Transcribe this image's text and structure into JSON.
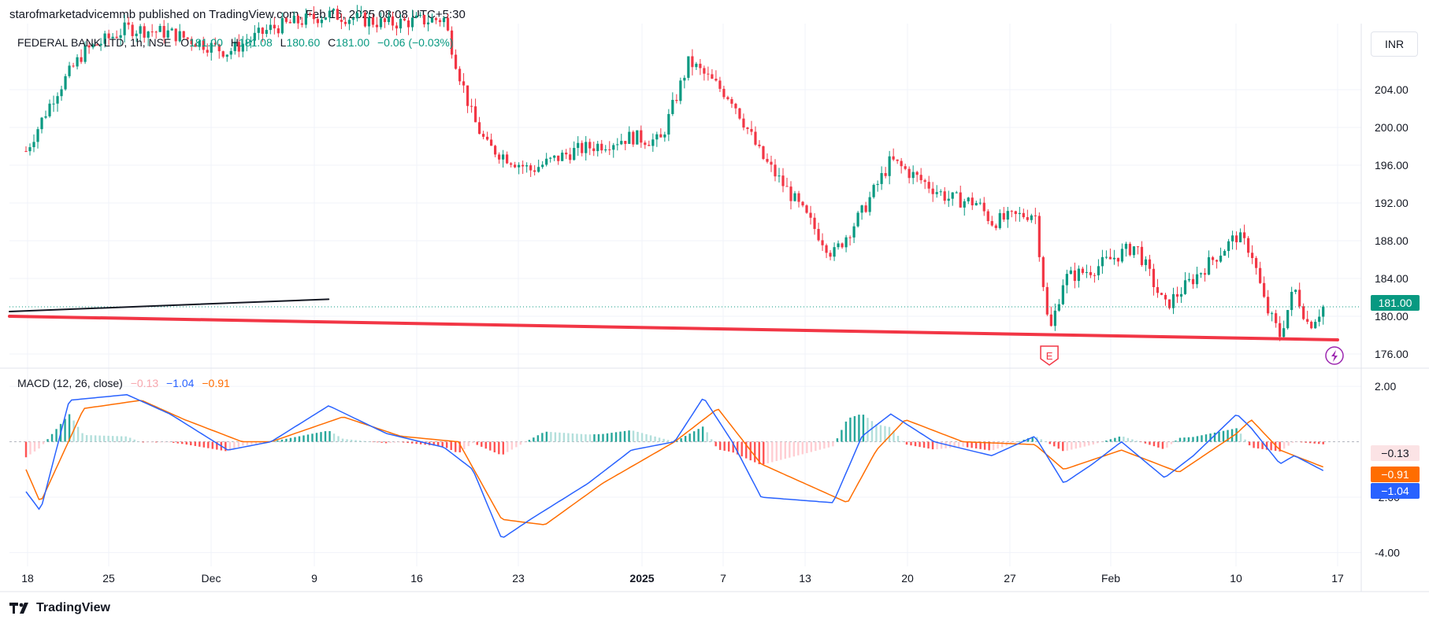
{
  "publisher_line": "starofmarketadvicemmb published on TradingView.com, Feb 16, 2025 08:08 UTC+5:30",
  "legend": {
    "symbol": "FEDERAL BANK LTD, 1h, NSE",
    "open_label": "O",
    "open": "181.00",
    "high_label": "H",
    "high": "181.08",
    "low_label": "L",
    "low": "180.60",
    "close_label": "C",
    "close": "181.00",
    "change": "−0.06 (−0.03%)"
  },
  "macd_legend": {
    "title": "MACD (12, 26, close)",
    "hist": "−0.13",
    "macd": "−1.04",
    "signal": "−0.91"
  },
  "currency": "INR",
  "brand": "TradingView",
  "last_price_tag": "181.00",
  "macd_tags": {
    "hist": "−0.13",
    "signal": "−0.91",
    "macd": "−1.04"
  },
  "earnings_marker": "E",
  "colors": {
    "up": "#089981",
    "down": "#f23645",
    "macd": "#2962ff",
    "signal": "#ff6d00",
    "trendline_red": "#f23645",
    "trendline_black": "#131722",
    "grid": "#f0f3fa",
    "events": "#9c27b0"
  },
  "chart_data": [
    {
      "type": "candlestick",
      "title": "FEDERAL BANK LTD, 1h, NSE",
      "ylim": [
        174.5,
        211
      ],
      "y_ticks": [
        "204.00",
        "200.00",
        "196.00",
        "192.00",
        "188.00",
        "184.00",
        "180.00",
        "176.00"
      ],
      "x_ticks": [
        "18",
        "25",
        "Dec",
        "9",
        "16",
        "23",
        "2025",
        "7",
        "13",
        "20",
        "27",
        "Feb",
        "10",
        "17"
      ],
      "close_path": [
        [
          "2024-11-18",
          197.5
        ],
        [
          "2024-11-20",
          203.5
        ],
        [
          "2024-11-22",
          208.0
        ],
        [
          "2024-11-25",
          210.5
        ],
        [
          "2024-11-28",
          210.0
        ],
        [
          "2024-12-02",
          208.0
        ],
        [
          "2024-12-05",
          210.5
        ],
        [
          "2024-12-09",
          212.0
        ],
        [
          "2024-12-13",
          211.0
        ],
        [
          "2024-12-17",
          211.5
        ],
        [
          "2024-12-18",
          206.0
        ],
        [
          "2024-12-19",
          201.0
        ],
        [
          "2024-12-20",
          198.0
        ],
        [
          "2024-12-23",
          195.5
        ],
        [
          "2024-12-26",
          197.5
        ],
        [
          "2024-12-30",
          199.0
        ],
        [
          "2025-01-01",
          198.5
        ],
        [
          "2025-01-03",
          207.0
        ],
        [
          "2025-01-06",
          203.0
        ],
        [
          "2025-01-08",
          197.0
        ],
        [
          "2025-01-10",
          193.0
        ],
        [
          "2025-01-13",
          186.5
        ],
        [
          "2025-01-15",
          191.0
        ],
        [
          "2025-01-17",
          196.5
        ],
        [
          "2025-01-21",
          192.5
        ],
        [
          "2025-01-23",
          192.0
        ],
        [
          "2025-01-24",
          190.0
        ],
        [
          "2025-01-27",
          191.0
        ],
        [
          "2025-01-28",
          178.0
        ],
        [
          "2025-01-29",
          184.0
        ],
        [
          "2025-01-31",
          185.0
        ],
        [
          "2025-02-03",
          187.5
        ],
        [
          "2025-02-05",
          181.0
        ],
        [
          "2025-02-07",
          184.0
        ],
        [
          "2025-02-10",
          188.5
        ],
        [
          "2025-02-11",
          187.0
        ],
        [
          "2025-02-12",
          181.0
        ],
        [
          "2025-02-13",
          178.0
        ],
        [
          "2025-02-14",
          183.0
        ],
        [
          "2025-02-15",
          179.0
        ],
        [
          "2025-02-16",
          181.0
        ]
      ],
      "last_price": 181.0,
      "trendlines": [
        {
          "name": "support",
          "from": [
            "2024-11-18",
            180.0
          ],
          "to": [
            "2025-02-17",
            177.5
          ],
          "color": "#f23645"
        },
        {
          "name": "trend",
          "from": [
            "2024-11-18",
            180.5
          ],
          "to": [
            "2024-12-09",
            181.8
          ],
          "color": "#131722"
        }
      ],
      "events": [
        {
          "date": "2025-01-28",
          "label": "E"
        },
        {
          "date": "2025-02-17",
          "label": "⚡"
        }
      ]
    },
    {
      "type": "macd",
      "title": "MACD (12, 26, close)",
      "ylim": [
        -4.5,
        2.6
      ],
      "y_ticks": [
        "2.00",
        "-2.00",
        "-4.00"
      ],
      "macd_path": [
        [
          "2024-11-18",
          -1.8
        ],
        [
          "2024-11-19",
          -2.5
        ],
        [
          "2024-11-21",
          1.5
        ],
        [
          "2024-11-25",
          1.7
        ],
        [
          "2024-11-28",
          1.0
        ],
        [
          "2024-12-02",
          -0.3
        ],
        [
          "2024-12-05",
          0.0
        ],
        [
          "2024-12-09",
          1.3
        ],
        [
          "2024-12-13",
          0.3
        ],
        [
          "2024-12-17",
          -0.2
        ],
        [
          "2024-12-19",
          -1.0
        ],
        [
          "2024-12-21",
          -3.5
        ],
        [
          "2024-12-23",
          -2.8
        ],
        [
          "2024-12-27",
          -1.5
        ],
        [
          "2024-12-30",
          -0.3
        ],
        [
          "2025-01-02",
          0.0
        ],
        [
          "2025-01-04",
          1.6
        ],
        [
          "2025-01-06",
          0.0
        ],
        [
          "2025-01-08",
          -2.0
        ],
        [
          "2025-01-13",
          -2.2
        ],
        [
          "2025-01-15",
          0.2
        ],
        [
          "2025-01-17",
          1.0
        ],
        [
          "2025-01-20",
          0.0
        ],
        [
          "2025-01-24",
          -0.5
        ],
        [
          "2025-01-27",
          0.2
        ],
        [
          "2025-01-29",
          -1.5
        ],
        [
          "2025-01-31",
          -0.8
        ],
        [
          "2025-02-02",
          0.0
        ],
        [
          "2025-02-05",
          -1.3
        ],
        [
          "2025-02-07",
          -0.5
        ],
        [
          "2025-02-10",
          1.0
        ],
        [
          "2025-02-11",
          0.5
        ],
        [
          "2025-02-13",
          -0.8
        ],
        [
          "2025-02-14",
          -0.5
        ],
        [
          "2025-02-16",
          -1.04
        ]
      ],
      "signal_path": [
        [
          "2024-11-18",
          -1.0
        ],
        [
          "2024-11-19",
          -2.2
        ],
        [
          "2024-11-22",
          1.2
        ],
        [
          "2024-11-26",
          1.5
        ],
        [
          "2024-11-29",
          0.8
        ],
        [
          "2024-12-03",
          0.0
        ],
        [
          "2024-12-05",
          0.0
        ],
        [
          "2024-12-10",
          0.9
        ],
        [
          "2024-12-14",
          0.2
        ],
        [
          "2024-12-18",
          0.0
        ],
        [
          "2024-12-21",
          -2.8
        ],
        [
          "2024-12-24",
          -3.0
        ],
        [
          "2024-12-28",
          -1.5
        ],
        [
          "2025-01-02",
          0.0
        ],
        [
          "2025-01-05",
          1.2
        ],
        [
          "2025-01-08",
          -0.8
        ],
        [
          "2025-01-14",
          -2.2
        ],
        [
          "2025-01-16",
          -0.3
        ],
        [
          "2025-01-18",
          0.8
        ],
        [
          "2025-01-22",
          0.0
        ],
        [
          "2025-01-27",
          -0.1
        ],
        [
          "2025-01-29",
          -1.0
        ],
        [
          "2025-02-02",
          -0.3
        ],
        [
          "2025-02-06",
          -1.1
        ],
        [
          "2025-02-10",
          0.3
        ],
        [
          "2025-02-11",
          0.8
        ],
        [
          "2025-02-13",
          -0.3
        ],
        [
          "2025-02-16",
          -0.91
        ]
      ],
      "histogram_last": -0.13
    }
  ]
}
